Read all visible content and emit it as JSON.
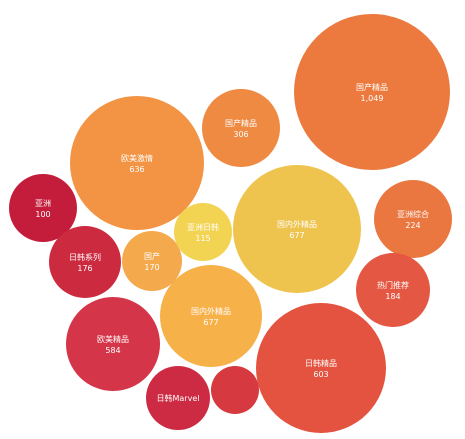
{
  "chart_data": {
    "type": "bubble",
    "title": "",
    "bubbles": [
      {
        "label": "国产精品",
        "value": "1,049",
        "color": "#ec7a3e"
      },
      {
        "label": "欧美激情",
        "value": "636",
        "color": "#f39445"
      },
      {
        "label": "国产精品",
        "value": "306",
        "color": "#ee8a42"
      },
      {
        "label": "国内外精品",
        "value": "677",
        "color": "#eec44e"
      },
      {
        "label": "亚洲综合",
        "value": "224",
        "color": "#ea7740"
      },
      {
        "label": "亚洲",
        "value": "100",
        "color": "#c31d3b"
      },
      {
        "label": "日韩系列",
        "value": "176",
        "color": "#cc2a3f"
      },
      {
        "label": "国产",
        "value": "170",
        "color": "#f5a94d"
      },
      {
        "label": "亚洲日韩",
        "value": "115",
        "color": "#f2d352"
      },
      {
        "label": "热门推荐",
        "value": "184",
        "color": "#e45843"
      },
      {
        "label": "国内外精品",
        "value": "677",
        "color": "#f7b149"
      },
      {
        "label": "欧美精品",
        "value": "584",
        "color": "#d43549"
      },
      {
        "label": "日韩精品",
        "value": "603",
        "color": "#e4533f"
      },
      {
        "label": "日韩Marvel",
        "value": "",
        "color": "#cd2b43"
      },
      {
        "label": "",
        "value": "",
        "color": "#d6393f"
      }
    ]
  }
}
